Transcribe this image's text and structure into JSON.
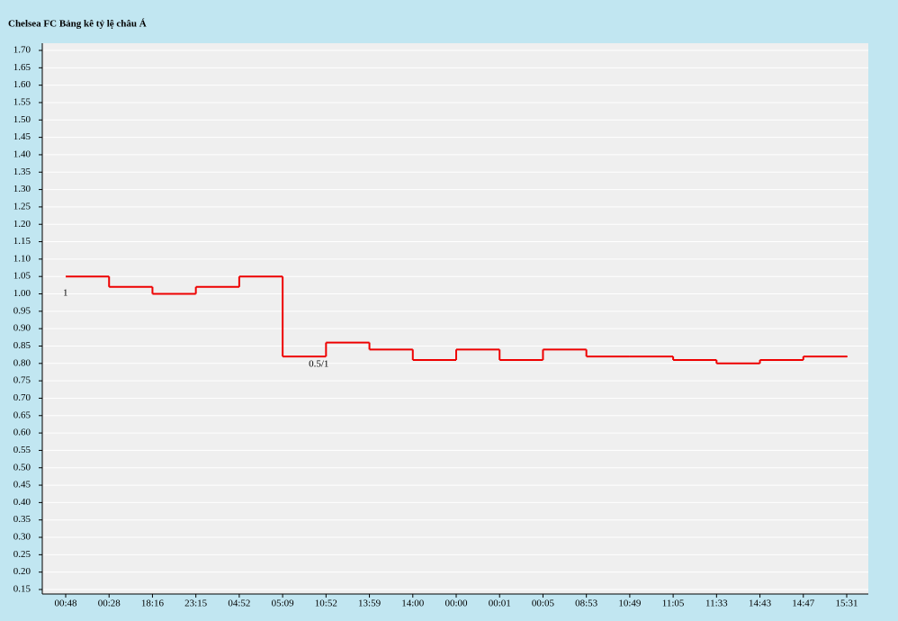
{
  "chart_data": {
    "type": "step",
    "title": "Chelsea FC Bảng kê tỷ lệ châu Á",
    "categories": [
      "00:48",
      "00:28",
      "18:16",
      "23:15",
      "04:52",
      "05:09",
      "10:52",
      "13:59",
      "14:00",
      "00:00",
      "00:01",
      "00:05",
      "08:53",
      "10:49",
      "11:05",
      "11:33",
      "14:43",
      "14:47",
      "15:31"
    ],
    "series": [
      {
        "name": "Chelsea FC",
        "color": "#ee0000",
        "values": [
          1.05,
          1.02,
          1.0,
          1.02,
          1.05,
          0.82,
          0.86,
          0.84,
          0.81,
          0.84,
          0.81,
          0.84,
          0.82,
          0.82,
          0.81,
          0.8,
          0.81,
          0.82,
          0.82
        ]
      }
    ],
    "annotations": [
      {
        "text": "1",
        "at": "00:48"
      },
      {
        "text": "0.5/1",
        "at": "05:09"
      }
    ],
    "ylim": [
      0.15,
      1.7
    ],
    "yticks": [
      {
        "value": 0.15,
        "label": "0.15"
      },
      {
        "value": 0.2,
        "label": "0.20"
      },
      {
        "value": 0.25,
        "label": "0.25"
      },
      {
        "value": 0.3,
        "label": "0.30"
      },
      {
        "value": 0.35,
        "label": "0.35"
      },
      {
        "value": 0.4,
        "label": "0.40"
      },
      {
        "value": 0.45,
        "label": "0.45"
      },
      {
        "value": 0.5,
        "label": "0.50"
      },
      {
        "value": 0.55,
        "label": "0.55"
      },
      {
        "value": 0.6,
        "label": "0.60"
      },
      {
        "value": 0.65,
        "label": "0.65"
      },
      {
        "value": 0.7,
        "label": "0.70"
      },
      {
        "value": 0.75,
        "label": "0.75"
      },
      {
        "value": 0.8,
        "label": "0.80"
      },
      {
        "value": 0.85,
        "label": "0.85"
      },
      {
        "value": 0.9,
        "label": "0.90"
      },
      {
        "value": 0.95,
        "label": "0.95"
      },
      {
        "value": 1.0,
        "label": "1.00"
      },
      {
        "value": 1.05,
        "label": "1.05"
      },
      {
        "value": 1.1,
        "label": "1.10"
      },
      {
        "value": 1.15,
        "label": "1.15"
      },
      {
        "value": 1.2,
        "label": "1.20"
      },
      {
        "value": 1.25,
        "label": "1.25"
      },
      {
        "value": 1.3,
        "label": "1.30"
      },
      {
        "value": 1.35,
        "label": "1.35"
      },
      {
        "value": 1.4,
        "label": "1.40"
      },
      {
        "value": 1.45,
        "label": "1.45"
      },
      {
        "value": 1.5,
        "label": "1.50"
      },
      {
        "value": 1.55,
        "label": "1.55"
      },
      {
        "value": 1.6,
        "label": "1.60"
      },
      {
        "value": 1.65,
        "label": "1.65"
      },
      {
        "value": 1.7,
        "label": "1.70"
      }
    ],
    "grid": true
  }
}
